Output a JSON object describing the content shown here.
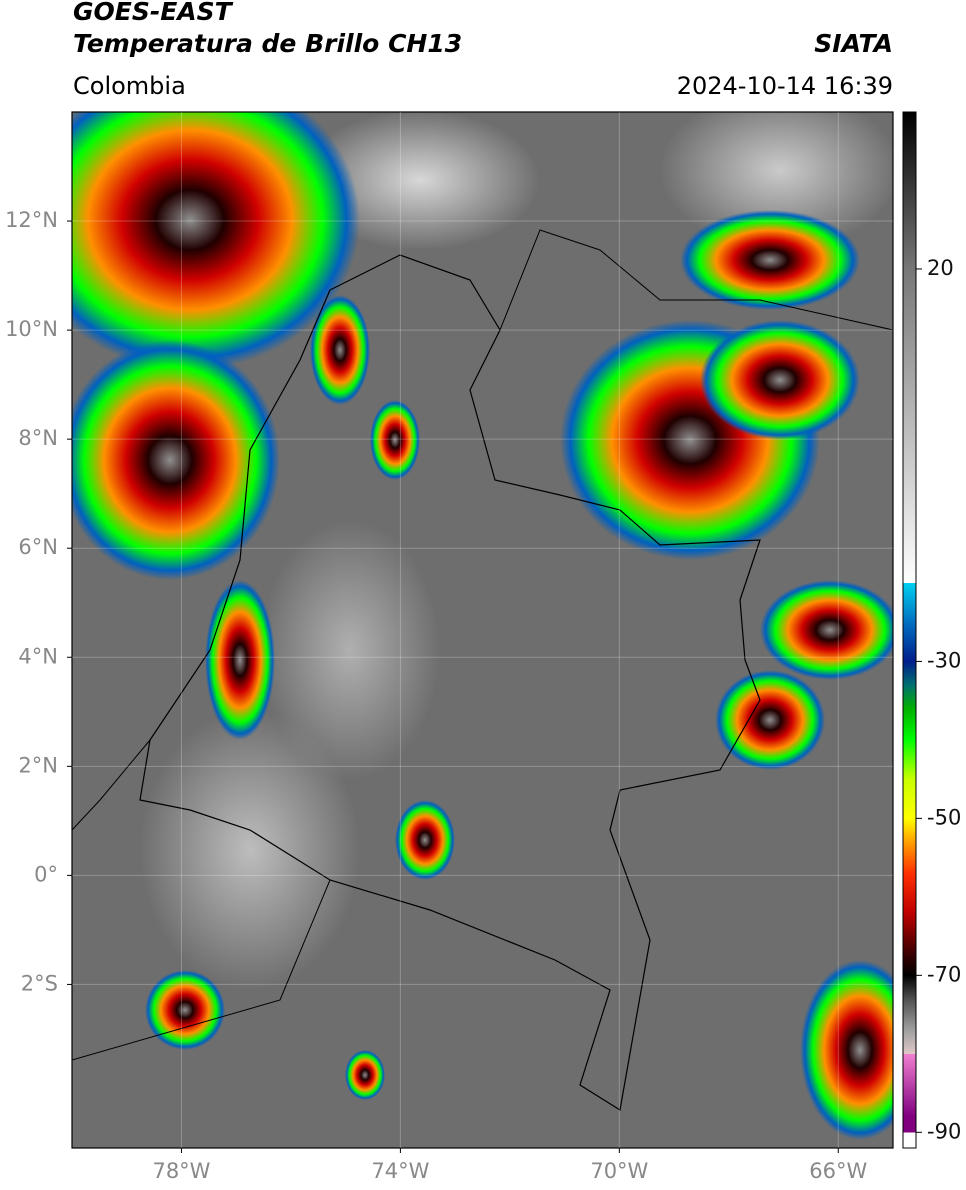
{
  "header": {
    "title": "GOES-EAST",
    "subtitle": "Temperatura de Brillo CH13",
    "region": "Colombia",
    "source": "SIATA",
    "datetime": "2024-10-14 16:39"
  },
  "map": {
    "xlim": [
      -80,
      -65
    ],
    "ylim": [
      -5,
      14
    ],
    "grid": true,
    "xticks": [
      {
        "value": -78,
        "label": "78°W"
      },
      {
        "value": -74,
        "label": "74°W"
      },
      {
        "value": -70,
        "label": "70°W"
      },
      {
        "value": -66,
        "label": "66°W"
      }
    ],
    "yticks": [
      {
        "value": 12,
        "label": "12°N"
      },
      {
        "value": 10,
        "label": "10°N"
      },
      {
        "value": 8,
        "label": "8°N"
      },
      {
        "value": 6,
        "label": "6°N"
      },
      {
        "value": 4,
        "label": "4°N"
      },
      {
        "value": 2,
        "label": "2°N"
      },
      {
        "value": 0,
        "label": "0°"
      },
      {
        "value": -2,
        "label": "2°S"
      }
    ]
  },
  "colorbar": {
    "lim": [
      -92,
      40
    ],
    "ticks": [
      20,
      -30,
      -50,
      -70,
      -90
    ],
    "colormap": [
      {
        "value": 40,
        "color": "#000000"
      },
      {
        "value": 20,
        "color": "#777777"
      },
      {
        "value": -20,
        "color": "#ffffff"
      },
      {
        "value": -20,
        "color": "#00d0f0"
      },
      {
        "value": -25,
        "color": "#0070c0"
      },
      {
        "value": -30,
        "color": "#001e8c"
      },
      {
        "value": -33,
        "color": "#007070"
      },
      {
        "value": -36,
        "color": "#00b000"
      },
      {
        "value": -40,
        "color": "#00ff00"
      },
      {
        "value": -45,
        "color": "#c8ff00"
      },
      {
        "value": -50,
        "color": "#ffff00"
      },
      {
        "value": -53,
        "color": "#ffa000"
      },
      {
        "value": -57,
        "color": "#ff3000"
      },
      {
        "value": -62,
        "color": "#c00000"
      },
      {
        "value": -67,
        "color": "#400000"
      },
      {
        "value": -70,
        "color": "#000000"
      },
      {
        "value": -73,
        "color": "#505050"
      },
      {
        "value": -77,
        "color": "#a0a0a0"
      },
      {
        "value": -80,
        "color": "#e0c8c8"
      },
      {
        "value": -80,
        "color": "#f080d0"
      },
      {
        "value": -88,
        "color": "#800080"
      },
      {
        "value": -90,
        "color": "#800080"
      },
      {
        "value": -90,
        "color": "#ffffff"
      },
      {
        "value": -92,
        "color": "#ffffff"
      }
    ]
  }
}
